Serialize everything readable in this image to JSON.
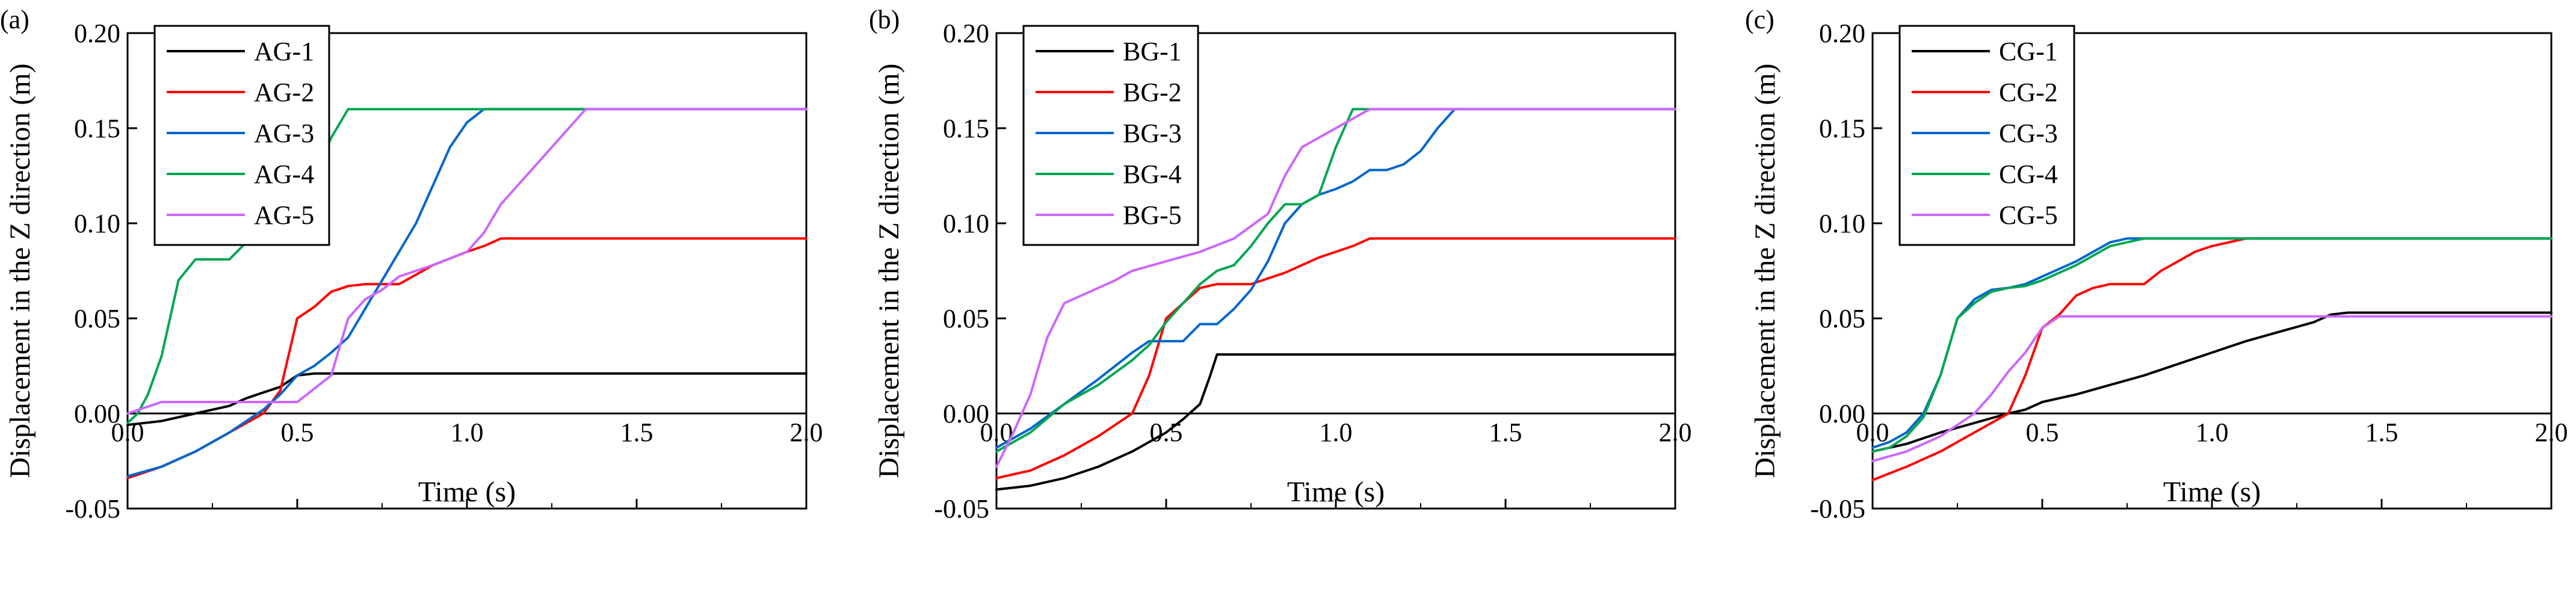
{
  "chart_data": [
    {
      "type": "line",
      "panel_label": "(a)",
      "xlabel": "Time (s)",
      "ylabel": "Displacement in the Z direction (m)",
      "xlim": [
        0,
        2.0
      ],
      "ylim": [
        -0.05,
        0.2
      ],
      "xticks": [
        "0.0",
        "0.5",
        "1.0",
        "1.5",
        "2.0"
      ],
      "yticks": [
        "-0.05",
        "0.00",
        "0.05",
        "0.10",
        "0.15",
        "0.20"
      ],
      "legend_position": "top-left",
      "series": [
        {
          "name": "AG-1",
          "color": "#000000",
          "x": [
            0,
            0.05,
            0.1,
            0.2,
            0.3,
            0.35,
            0.4,
            0.45,
            0.5,
            0.55,
            0.6,
            2.0
          ],
          "y": [
            -0.006,
            -0.005,
            -0.004,
            0.0,
            0.004,
            0.008,
            0.011,
            0.014,
            0.02,
            0.021,
            0.021,
            0.021
          ]
        },
        {
          "name": "AG-2",
          "color": "#ff0000",
          "x": [
            0,
            0.1,
            0.2,
            0.3,
            0.4,
            0.45,
            0.5,
            0.55,
            0.6,
            0.65,
            0.7,
            0.8,
            0.9,
            1.0,
            1.05,
            1.1,
            2.0
          ],
          "y": [
            -0.034,
            -0.028,
            -0.02,
            -0.01,
            0.0,
            0.012,
            0.05,
            0.056,
            0.064,
            0.067,
            0.068,
            0.068,
            0.078,
            0.085,
            0.088,
            0.092,
            0.092
          ]
        },
        {
          "name": "AG-3",
          "color": "#0066cc",
          "x": [
            0,
            0.1,
            0.2,
            0.3,
            0.4,
            0.45,
            0.5,
            0.55,
            0.6,
            0.65,
            0.7,
            0.75,
            0.8,
            0.85,
            0.9,
            0.95,
            1.0,
            1.05,
            2.0
          ],
          "y": [
            -0.033,
            -0.028,
            -0.02,
            -0.01,
            0.002,
            0.01,
            0.02,
            0.025,
            0.032,
            0.04,
            0.055,
            0.07,
            0.085,
            0.1,
            0.12,
            0.14,
            0.153,
            0.16,
            0.16
          ]
        },
        {
          "name": "AG-4",
          "color": "#00a651",
          "x": [
            0,
            0.03,
            0.06,
            0.1,
            0.15,
            0.2,
            0.25,
            0.3,
            0.35,
            0.4,
            0.45,
            0.5,
            0.55,
            0.6,
            0.65,
            2.0
          ],
          "y": [
            -0.005,
            0.0,
            0.01,
            0.03,
            0.07,
            0.081,
            0.081,
            0.081,
            0.09,
            0.1,
            0.1,
            0.11,
            0.125,
            0.145,
            0.16,
            0.16
          ]
        },
        {
          "name": "AG-5",
          "color": "#cc66ff",
          "x": [
            0,
            0.05,
            0.1,
            0.15,
            0.3,
            0.5,
            0.6,
            0.65,
            0.7,
            0.75,
            0.8,
            0.9,
            1.0,
            1.05,
            1.1,
            1.15,
            1.2,
            1.25,
            1.3,
            1.35,
            2.0
          ],
          "y": [
            0.0,
            0.003,
            0.006,
            0.006,
            0.006,
            0.006,
            0.02,
            0.05,
            0.06,
            0.065,
            0.072,
            0.078,
            0.085,
            0.095,
            0.11,
            0.12,
            0.13,
            0.14,
            0.15,
            0.16,
            0.16
          ]
        }
      ]
    },
    {
      "type": "line",
      "panel_label": "(b)",
      "xlabel": "Time (s)",
      "ylabel": "Displacement in the Z direction (m)",
      "xlim": [
        0,
        2.0
      ],
      "ylim": [
        -0.05,
        0.2
      ],
      "xticks": [
        "0.0",
        "0.5",
        "1.0",
        "1.5",
        "2.0"
      ],
      "yticks": [
        "-0.05",
        "0.00",
        "0.05",
        "0.10",
        "0.15",
        "0.20"
      ],
      "legend_position": "top-left",
      "series": [
        {
          "name": "BG-1",
          "color": "#000000",
          "x": [
            0,
            0.1,
            0.2,
            0.3,
            0.4,
            0.5,
            0.55,
            0.6,
            0.63,
            0.65,
            2.0
          ],
          "y": [
            -0.04,
            -0.038,
            -0.034,
            -0.028,
            -0.02,
            -0.01,
            -0.003,
            0.005,
            0.02,
            0.031,
            0.031
          ]
        },
        {
          "name": "BG-2",
          "color": "#ff0000",
          "x": [
            0,
            0.1,
            0.2,
            0.3,
            0.4,
            0.45,
            0.5,
            0.55,
            0.6,
            0.65,
            0.75,
            0.85,
            0.95,
            1.05,
            1.1,
            2.0
          ],
          "y": [
            -0.034,
            -0.03,
            -0.022,
            -0.012,
            0.0,
            0.02,
            0.05,
            0.058,
            0.066,
            0.068,
            0.068,
            0.074,
            0.082,
            0.088,
            0.092,
            0.092
          ]
        },
        {
          "name": "BG-3",
          "color": "#0066cc",
          "x": [
            0,
            0.1,
            0.2,
            0.3,
            0.35,
            0.4,
            0.45,
            0.5,
            0.55,
            0.6,
            0.65,
            0.7,
            0.75,
            0.8,
            0.85,
            0.9,
            0.95,
            1.0,
            1.05,
            1.1,
            1.15,
            1.2,
            1.25,
            1.3,
            1.35,
            2.0
          ],
          "y": [
            -0.018,
            -0.008,
            0.005,
            0.018,
            0.025,
            0.032,
            0.038,
            0.038,
            0.038,
            0.047,
            0.047,
            0.055,
            0.065,
            0.08,
            0.1,
            0.11,
            0.115,
            0.118,
            0.122,
            0.128,
            0.128,
            0.131,
            0.138,
            0.15,
            0.16,
            0.16
          ]
        },
        {
          "name": "BG-4",
          "color": "#00a651",
          "x": [
            0,
            0.1,
            0.2,
            0.3,
            0.4,
            0.45,
            0.5,
            0.55,
            0.6,
            0.65,
            0.7,
            0.75,
            0.8,
            0.85,
            0.9,
            0.95,
            1.0,
            1.05,
            2.0
          ],
          "y": [
            -0.02,
            -0.01,
            0.005,
            0.015,
            0.028,
            0.036,
            0.048,
            0.058,
            0.068,
            0.075,
            0.078,
            0.088,
            0.1,
            0.11,
            0.11,
            0.115,
            0.14,
            0.16,
            0.16
          ]
        },
        {
          "name": "BG-5",
          "color": "#cc66ff",
          "x": [
            0,
            0.05,
            0.1,
            0.15,
            0.2,
            0.25,
            0.3,
            0.35,
            0.4,
            0.5,
            0.6,
            0.7,
            0.8,
            0.85,
            0.9,
            0.95,
            1.0,
            1.05,
            1.1,
            2.0
          ],
          "y": [
            -0.028,
            -0.01,
            0.01,
            0.04,
            0.058,
            0.062,
            0.066,
            0.07,
            0.075,
            0.08,
            0.085,
            0.092,
            0.105,
            0.125,
            0.14,
            0.145,
            0.15,
            0.155,
            0.16,
            0.16
          ]
        }
      ]
    },
    {
      "type": "line",
      "panel_label": "(c)",
      "xlabel": "Time (s)",
      "ylabel": "Displacement in the Z direction (m)",
      "xlim": [
        0,
        2.0
      ],
      "ylim": [
        -0.05,
        0.2
      ],
      "xticks": [
        "0.0",
        "0.5",
        "1.0",
        "1.5",
        "2.0"
      ],
      "yticks": [
        "-0.05",
        "0.00",
        "0.05",
        "0.10",
        "0.15",
        "0.20"
      ],
      "legend_position": "top-left",
      "series": [
        {
          "name": "CG-1",
          "color": "#000000",
          "x": [
            0,
            0.1,
            0.2,
            0.3,
            0.4,
            0.45,
            0.5,
            0.55,
            0.6,
            0.7,
            0.8,
            0.9,
            1.0,
            1.1,
            1.2,
            1.3,
            1.35,
            1.4,
            2.0
          ],
          "y": [
            -0.02,
            -0.016,
            -0.01,
            -0.005,
            0.0,
            0.002,
            0.006,
            0.008,
            0.01,
            0.015,
            0.02,
            0.026,
            0.032,
            0.038,
            0.043,
            0.048,
            0.052,
            0.053,
            0.053
          ]
        },
        {
          "name": "CG-2",
          "color": "#ff0000",
          "x": [
            0,
            0.1,
            0.2,
            0.3,
            0.4,
            0.45,
            0.5,
            0.55,
            0.6,
            0.65,
            0.7,
            0.8,
            0.85,
            0.9,
            0.95,
            1.0,
            1.05,
            1.1,
            2.0
          ],
          "y": [
            -0.035,
            -0.028,
            -0.02,
            -0.01,
            0.0,
            0.02,
            0.045,
            0.052,
            0.062,
            0.066,
            0.068,
            0.068,
            0.075,
            0.08,
            0.085,
            0.088,
            0.09,
            0.092,
            0.092
          ]
        },
        {
          "name": "CG-3",
          "color": "#0066cc",
          "x": [
            0,
            0.05,
            0.1,
            0.15,
            0.2,
            0.25,
            0.3,
            0.35,
            0.4,
            0.45,
            0.5,
            0.55,
            0.6,
            0.65,
            0.7,
            0.75,
            2.0
          ],
          "y": [
            -0.018,
            -0.015,
            -0.01,
            0.0,
            0.02,
            0.05,
            0.06,
            0.065,
            0.066,
            0.068,
            0.072,
            0.076,
            0.08,
            0.085,
            0.09,
            0.092,
            0.092
          ]
        },
        {
          "name": "CG-4",
          "color": "#00a651",
          "x": [
            0,
            0.05,
            0.1,
            0.15,
            0.2,
            0.25,
            0.3,
            0.35,
            0.4,
            0.45,
            0.5,
            0.55,
            0.6,
            0.65,
            0.7,
            0.75,
            0.8,
            2.0
          ],
          "y": [
            -0.02,
            -0.018,
            -0.012,
            -0.002,
            0.02,
            0.05,
            0.058,
            0.064,
            0.066,
            0.067,
            0.07,
            0.074,
            0.078,
            0.083,
            0.088,
            0.09,
            0.092,
            0.092
          ]
        },
        {
          "name": "CG-5",
          "color": "#cc66ff",
          "x": [
            0,
            0.1,
            0.2,
            0.3,
            0.35,
            0.4,
            0.45,
            0.5,
            0.55,
            2.0
          ],
          "y": [
            -0.025,
            -0.02,
            -0.012,
            0.0,
            0.01,
            0.022,
            0.032,
            0.045,
            0.051,
            0.051
          ]
        }
      ]
    }
  ]
}
